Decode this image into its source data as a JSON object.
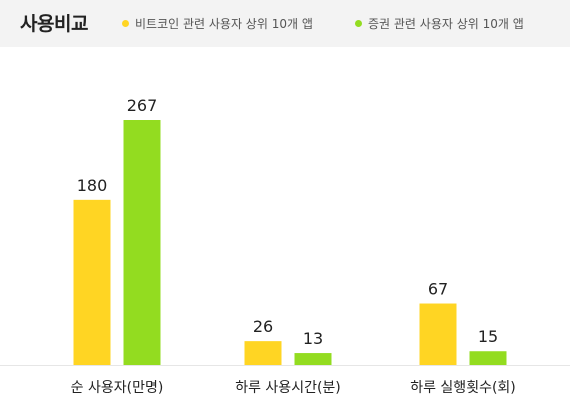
{
  "title": "사용비교",
  "chart_data": {
    "type": "bar",
    "categories": [
      "순 사용자(만명)",
      "하루 사용시간(분)",
      "하루 실행횟수(회)"
    ],
    "series": [
      {
        "name": "비트코인 관련 사용자 상위 10개 앱",
        "color": "#ffd523",
        "values": [
          180,
          26,
          67
        ]
      },
      {
        "name": "증권 관련 사용자 상위 10개 앱",
        "color": "#93dc20",
        "values": [
          267,
          13,
          15
        ]
      }
    ],
    "title": "사용비교",
    "xlabel": "",
    "ylabel": "",
    "ylim": [
      0,
      267
    ],
    "grid": false,
    "legend_position": "top-right"
  }
}
